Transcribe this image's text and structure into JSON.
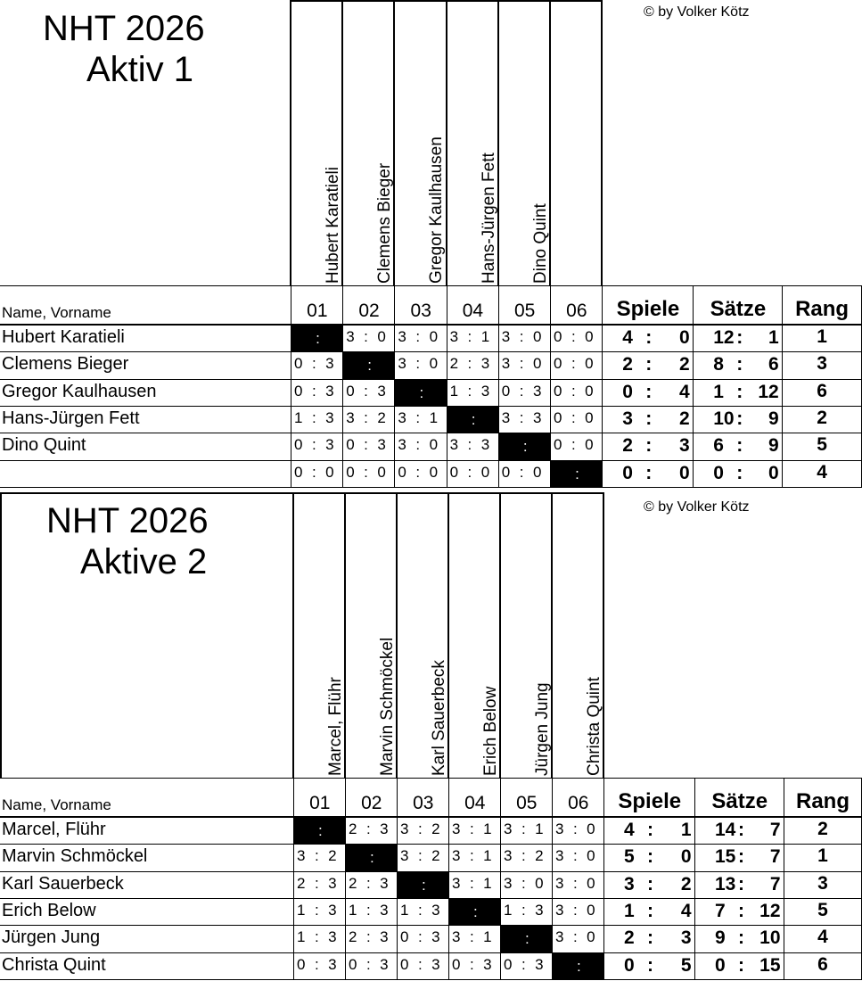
{
  "copyright": "© by Volker Kötz",
  "columns": {
    "name_header": "Name, Vorname",
    "numbers": [
      "01",
      "02",
      "03",
      "04",
      "05",
      "06"
    ],
    "spiele": "Spiele",
    "saetze": "Sätze",
    "rang": "Rang"
  },
  "tables": [
    {
      "title": "NHT 2026",
      "subtitle": "Aktiv 1",
      "header_names": [
        "Hubert Karatieli",
        "Clemens Bieger",
        "Gregor Kaulhausen",
        "Hans-Jürgen Fett",
        "Dino Quint",
        ""
      ],
      "rows": [
        {
          "name": "Hubert Karatieli",
          "scores": [
            null,
            "3:0",
            "3:0",
            "3:1",
            "3:0",
            "0:0"
          ],
          "spiele": [
            "4",
            "0"
          ],
          "saetze": [
            "12",
            "1"
          ],
          "rang": "1"
        },
        {
          "name": "Clemens Bieger",
          "scores": [
            "0:3",
            null,
            "3:0",
            "2:3",
            "3:0",
            "0:0"
          ],
          "spiele": [
            "2",
            "2"
          ],
          "saetze": [
            "8",
            "6"
          ],
          "rang": "3"
        },
        {
          "name": "Gregor Kaulhausen",
          "scores": [
            "0:3",
            "0:3",
            null,
            "1:3",
            "0:3",
            "0:0"
          ],
          "spiele": [
            "0",
            "4"
          ],
          "saetze": [
            "1",
            "12"
          ],
          "rang": "6"
        },
        {
          "name": "Hans-Jürgen Fett",
          "scores": [
            "1:3",
            "3:2",
            "3:1",
            null,
            "3:3",
            "0:0"
          ],
          "spiele": [
            "3",
            "2"
          ],
          "saetze": [
            "10",
            "9"
          ],
          "rang": "2"
        },
        {
          "name": "Dino Quint",
          "scores": [
            "0:3",
            "0:3",
            "3:0",
            "3:3",
            null,
            "0:0"
          ],
          "spiele": [
            "2",
            "3"
          ],
          "saetze": [
            "6",
            "9"
          ],
          "rang": "5"
        },
        {
          "name": "",
          "scores": [
            "0:0",
            "0:0",
            "0:0",
            "0:0",
            "0:0",
            null
          ],
          "spiele": [
            "0",
            "0"
          ],
          "saetze": [
            "0",
            "0"
          ],
          "rang": "4"
        }
      ]
    },
    {
      "title": "NHT 2026",
      "subtitle": "Aktive 2",
      "header_names": [
        "Marcel, Flühr",
        "Marvin Schmöckel",
        "Karl Sauerbeck",
        "Erich Below",
        "Jürgen Jung",
        "Christa Quint"
      ],
      "rows": [
        {
          "name": "Marcel, Flühr",
          "scores": [
            null,
            "2:3",
            "3:2",
            "3:1",
            "3:1",
            "3:0"
          ],
          "spiele": [
            "4",
            "1"
          ],
          "saetze": [
            "14",
            "7"
          ],
          "rang": "2"
        },
        {
          "name": "Marvin Schmöckel",
          "scores": [
            "3:2",
            null,
            "3:2",
            "3:1",
            "3:2",
            "3:0"
          ],
          "spiele": [
            "5",
            "0"
          ],
          "saetze": [
            "15",
            "7"
          ],
          "rang": "1"
        },
        {
          "name": "Karl Sauerbeck",
          "scores": [
            "2:3",
            "2:3",
            null,
            "3:1",
            "3:0",
            "3:0"
          ],
          "spiele": [
            "3",
            "2"
          ],
          "saetze": [
            "13",
            "7"
          ],
          "rang": "3"
        },
        {
          "name": "Erich Below",
          "scores": [
            "1:3",
            "1:3",
            "1:3",
            null,
            "1:3",
            "3:0"
          ],
          "spiele": [
            "1",
            "4"
          ],
          "saetze": [
            "7",
            "12"
          ],
          "rang": "5"
        },
        {
          "name": "Jürgen Jung",
          "scores": [
            "1:3",
            "2:3",
            "0:3",
            "3:1",
            null,
            "3:0"
          ],
          "spiele": [
            "2",
            "3"
          ],
          "saetze": [
            "9",
            "10"
          ],
          "rang": "4"
        },
        {
          "name": "Christa Quint",
          "scores": [
            "0:3",
            "0:3",
            "0:3",
            "0:3",
            "0:3",
            null
          ],
          "spiele": [
            "0",
            "5"
          ],
          "saetze": [
            "0",
            "15"
          ],
          "rang": "6"
        }
      ]
    }
  ]
}
